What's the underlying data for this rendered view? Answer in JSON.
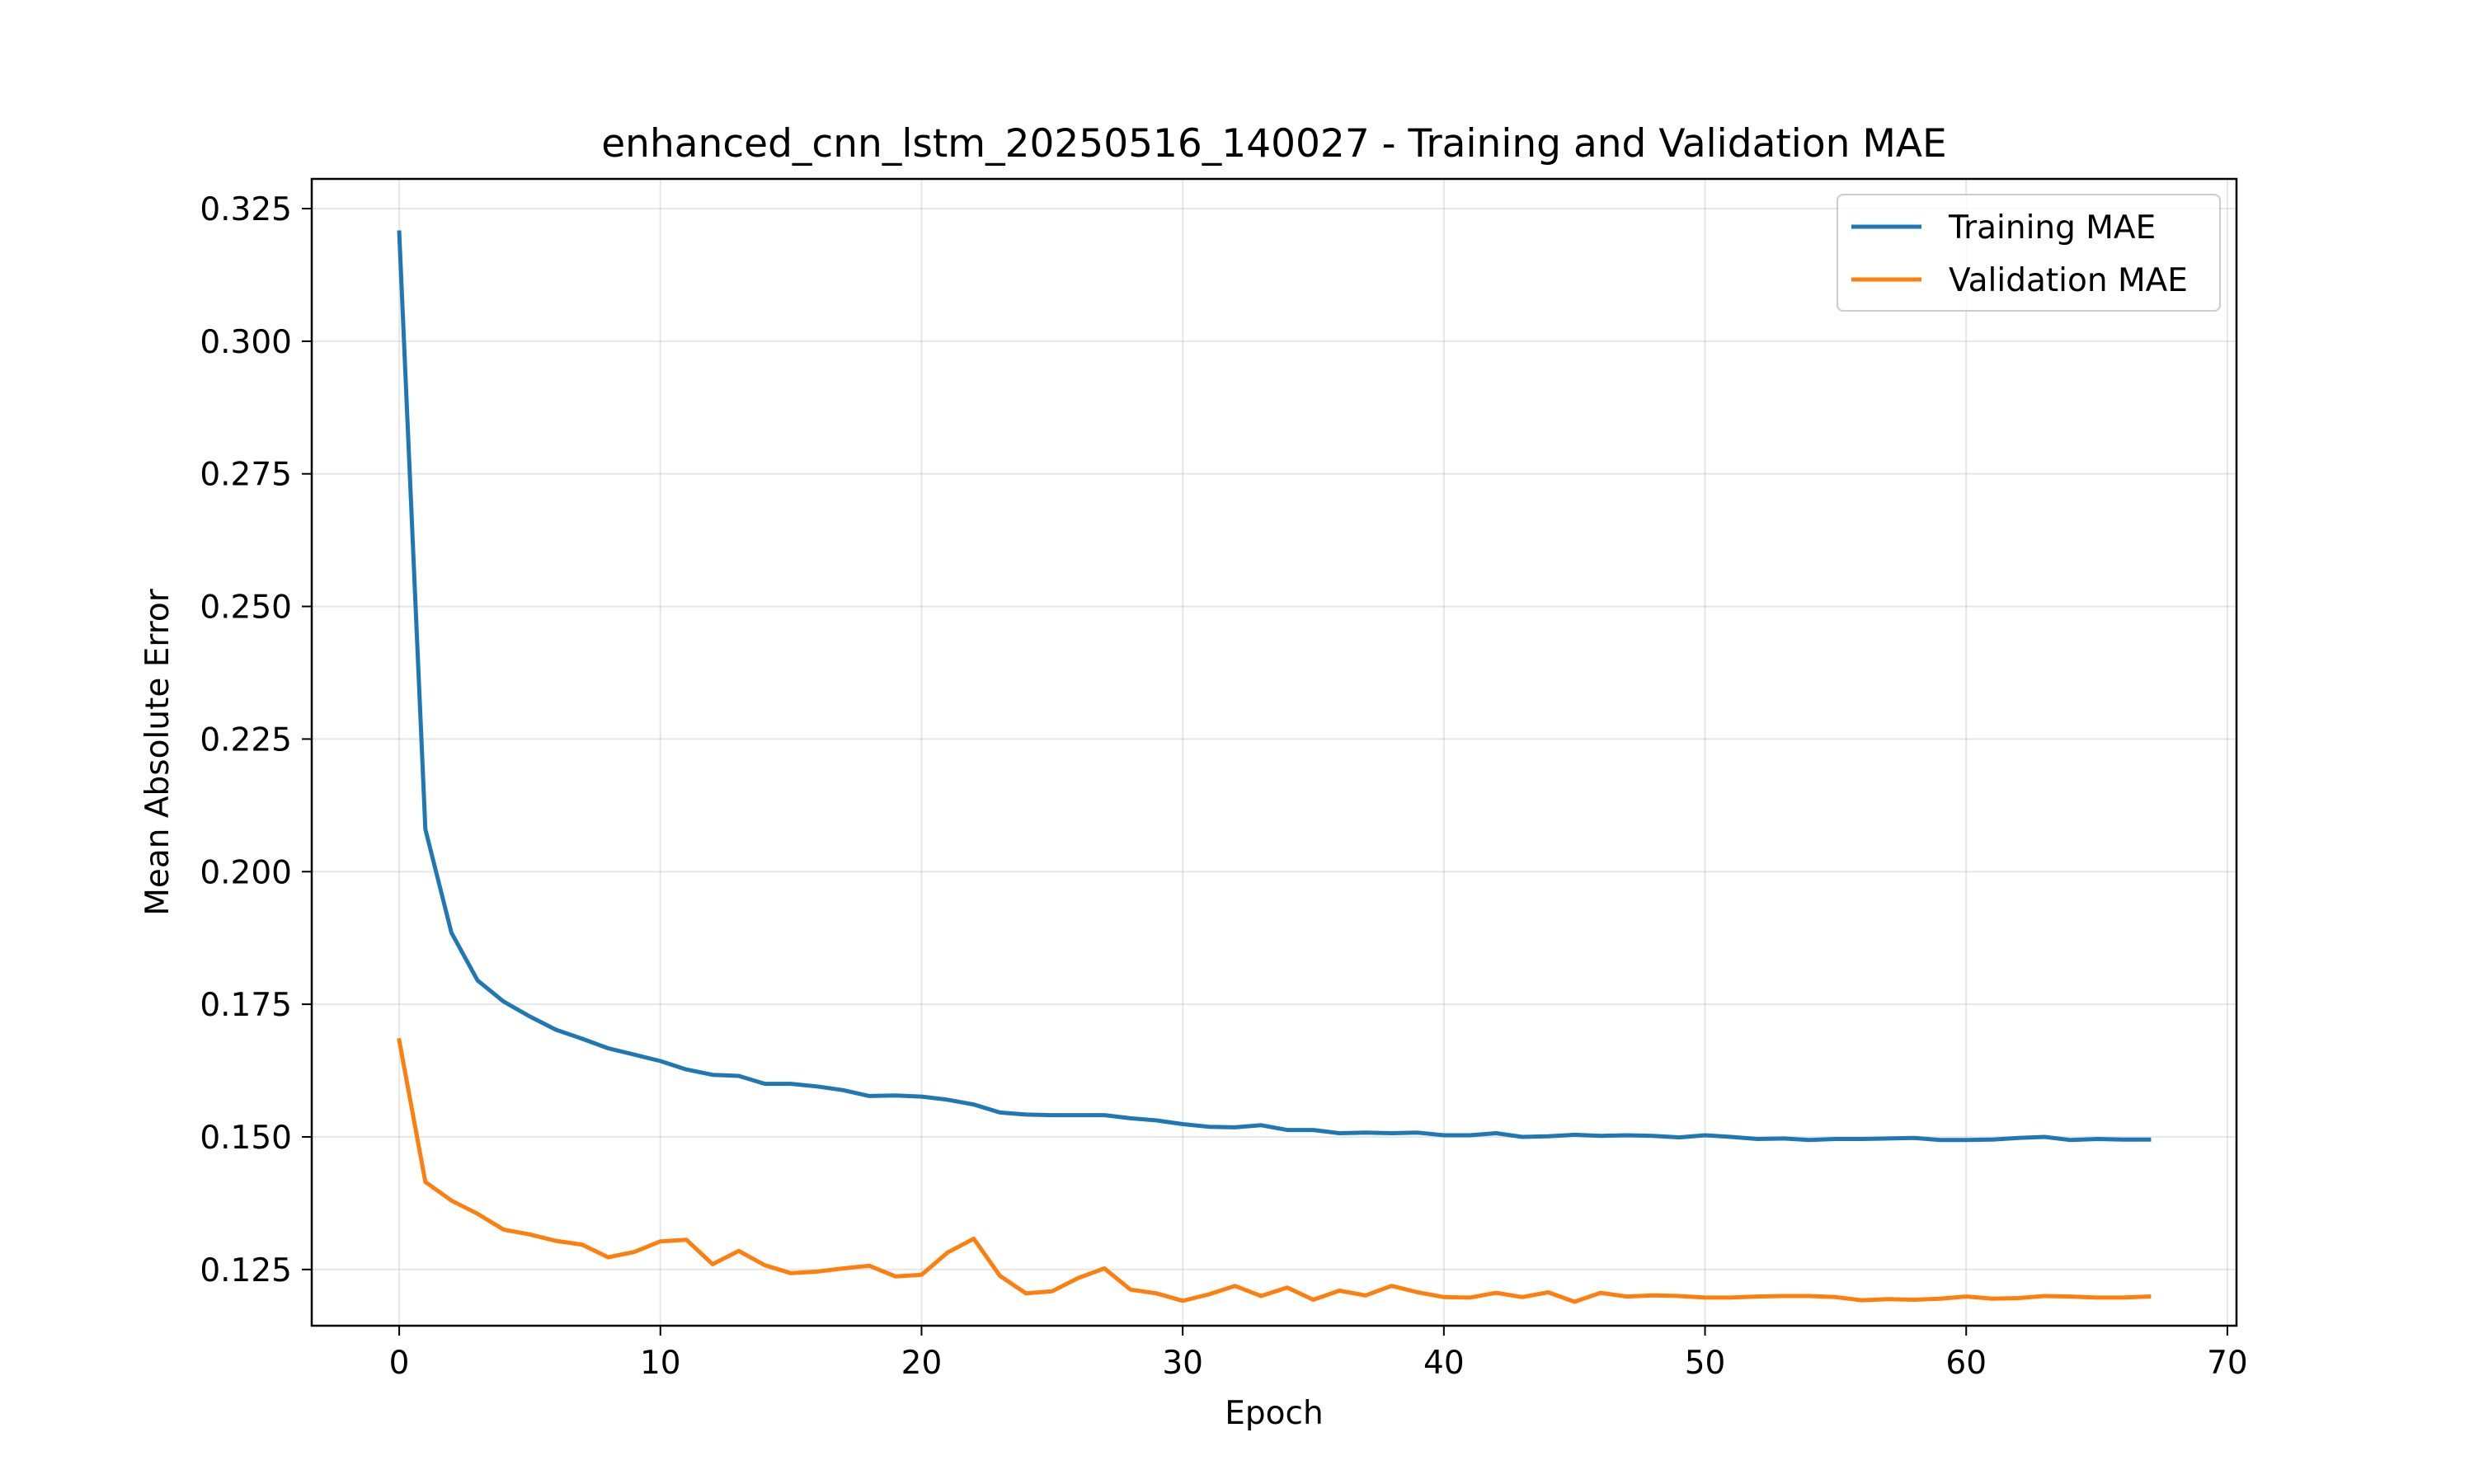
{
  "chart_data": {
    "type": "line",
    "title": "enhanced_cnn_lstm_20250516_140027 - Training and Validation MAE",
    "xlabel": "Epoch",
    "ylabel": "Mean Absolute Error",
    "xlim": [
      -3.35,
      70.35
    ],
    "ylim": [
      0.1144,
      0.3306
    ],
    "xticks": [
      0,
      10,
      20,
      30,
      40,
      50,
      60,
      70
    ],
    "yticks": [
      0.125,
      0.15,
      0.175,
      0.2,
      0.225,
      0.25,
      0.275,
      0.3,
      0.325
    ],
    "xtick_labels": [
      "0",
      "10",
      "20",
      "30",
      "40",
      "50",
      "60",
      "70"
    ],
    "ytick_labels": [
      "0.125",
      "0.150",
      "0.175",
      "0.200",
      "0.225",
      "0.250",
      "0.275",
      "0.300",
      "0.325"
    ],
    "grid": true,
    "legend_position": "top-right",
    "series": [
      {
        "name": "Training MAE",
        "color": "#1f77b4",
        "x": [
          0,
          1,
          2,
          3,
          4,
          5,
          6,
          7,
          8,
          9,
          10,
          11,
          12,
          13,
          14,
          15,
          16,
          17,
          18,
          19,
          20,
          21,
          22,
          23,
          24,
          25,
          26,
          27,
          28,
          29,
          30,
          31,
          32,
          33,
          34,
          35,
          36,
          37,
          38,
          39,
          40,
          41,
          42,
          43,
          44,
          45,
          46,
          47,
          48,
          49,
          50,
          51,
          52,
          53,
          54,
          55,
          56,
          57,
          58,
          59,
          60,
          61,
          62,
          63,
          64,
          65,
          66,
          67
        ],
        "values": [
          0.3205,
          0.208,
          0.1885,
          0.1795,
          0.1755,
          0.1727,
          0.1702,
          0.1685,
          0.1667,
          0.1655,
          0.1643,
          0.1627,
          0.1617,
          0.1615,
          0.16,
          0.16,
          0.1595,
          0.1588,
          0.1577,
          0.1578,
          0.1576,
          0.157,
          0.1561,
          0.1546,
          0.1542,
          0.1541,
          0.1541,
          0.1541,
          0.1535,
          0.1531,
          0.1524,
          0.1519,
          0.1518,
          0.1522,
          0.1513,
          0.1513,
          0.1507,
          0.1508,
          0.1507,
          0.1508,
          0.1503,
          0.1503,
          0.1507,
          0.15,
          0.1501,
          0.1504,
          0.1502,
          0.1503,
          0.1502,
          0.1499,
          0.1503,
          0.15,
          0.1496,
          0.1497,
          0.1494,
          0.1496,
          0.1496,
          0.1497,
          0.1498,
          0.1494,
          0.1494,
          0.1495,
          0.1498,
          0.15,
          0.1494,
          0.1496,
          0.1495,
          0.1495
        ]
      },
      {
        "name": "Validation MAE",
        "color": "#ff7f0e",
        "x": [
          0,
          1,
          2,
          3,
          4,
          5,
          6,
          7,
          8,
          9,
          10,
          11,
          12,
          13,
          14,
          15,
          16,
          17,
          18,
          19,
          20,
          21,
          22,
          23,
          24,
          25,
          26,
          27,
          28,
          29,
          30,
          31,
          32,
          33,
          34,
          35,
          36,
          37,
          38,
          39,
          40,
          41,
          42,
          43,
          44,
          45,
          46,
          47,
          48,
          49,
          50,
          51,
          52,
          53,
          54,
          55,
          56,
          57,
          58,
          59,
          60,
          61,
          62,
          63,
          64,
          65,
          66,
          67
        ],
        "values": [
          0.1682,
          0.1415,
          0.138,
          0.1355,
          0.1325,
          0.1316,
          0.1304,
          0.1297,
          0.1273,
          0.1283,
          0.1303,
          0.1306,
          0.126,
          0.1285,
          0.1258,
          0.1243,
          0.1246,
          0.1252,
          0.1257,
          0.1237,
          0.124,
          0.1282,
          0.1308,
          0.1238,
          0.1205,
          0.1209,
          0.1234,
          0.1252,
          0.1212,
          0.1205,
          0.1191,
          0.1203,
          0.1219,
          0.12,
          0.1216,
          0.1193,
          0.121,
          0.1201,
          0.1219,
          0.1207,
          0.1198,
          0.1197,
          0.1206,
          0.1198,
          0.1207,
          0.1189,
          0.1206,
          0.1199,
          0.1201,
          0.12,
          0.1197,
          0.1197,
          0.1199,
          0.12,
          0.12,
          0.1198,
          0.1192,
          0.1194,
          0.1193,
          0.1195,
          0.1199,
          0.1195,
          0.1196,
          0.12,
          0.1199,
          0.1197,
          0.1197,
          0.1199
        ]
      }
    ]
  }
}
